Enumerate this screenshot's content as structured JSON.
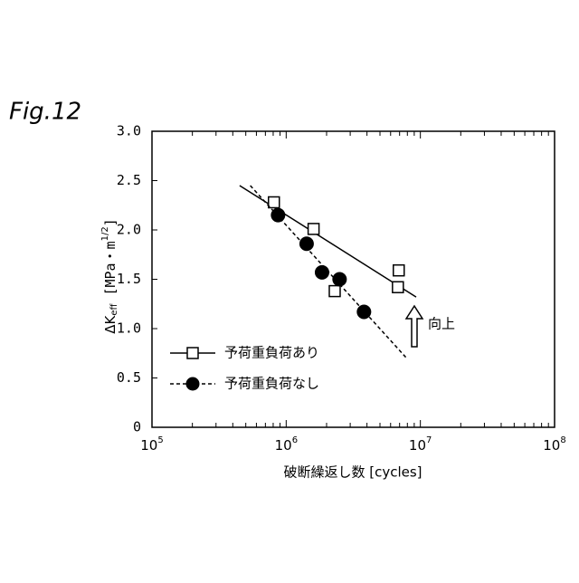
{
  "chart_data": {
    "type": "scatter",
    "figure_label": "Fig.12",
    "x_label": "破断繰返し数 [cycles]",
    "y_label": {
      "symbol": "ΔK",
      "subscript": "eff",
      "unit": " [MPa・m",
      "exponent": "1/2",
      "close": "]"
    },
    "xscale": "log",
    "xlim": [
      100000,
      100000000
    ],
    "xticks": [
      {
        "value": 100000,
        "label": "10",
        "exponent": "5"
      },
      {
        "value": 1000000,
        "label": "10",
        "exponent": "6"
      },
      {
        "value": 10000000,
        "label": "10",
        "exponent": "7"
      },
      {
        "value": 100000000,
        "label": "10",
        "exponent": "8"
      }
    ],
    "ylim": [
      0,
      3
    ],
    "yticks": [
      0,
      {
        "value": 0.5,
        "label": "0.5"
      },
      {
        "value": 1,
        "label": "1.0"
      },
      {
        "value": 1.5,
        "label": "1.5"
      },
      {
        "value": 2,
        "label": "2.0"
      },
      {
        "value": 2.5,
        "label": "2.5"
      },
      {
        "value": 3,
        "label": "3.0"
      }
    ],
    "series": [
      {
        "name": "予荷重負荷あり",
        "marker": "square",
        "line": "solid",
        "color": "#000000",
        "x": [
          810000,
          1600000,
          2300000,
          6800000,
          6900000
        ],
        "values": [
          2.28,
          2.01,
          1.38,
          1.42,
          1.59
        ],
        "fit": {
          "x": [
            450000,
            9300000
          ],
          "values": [
            2.45,
            1.32
          ]
        }
      },
      {
        "name": "予荷重負荷なし",
        "marker": "circle",
        "line": "dashed",
        "color": "#000000",
        "x": [
          870000,
          1420000,
          1850000,
          2500000,
          3800000
        ],
        "values": [
          2.15,
          1.86,
          1.57,
          1.5,
          1.17
        ],
        "fit": {
          "x": [
            540000,
            7900000
          ],
          "values": [
            2.45,
            0.7
          ]
        }
      }
    ],
    "annotation": "向上",
    "legend": "lower-left"
  }
}
